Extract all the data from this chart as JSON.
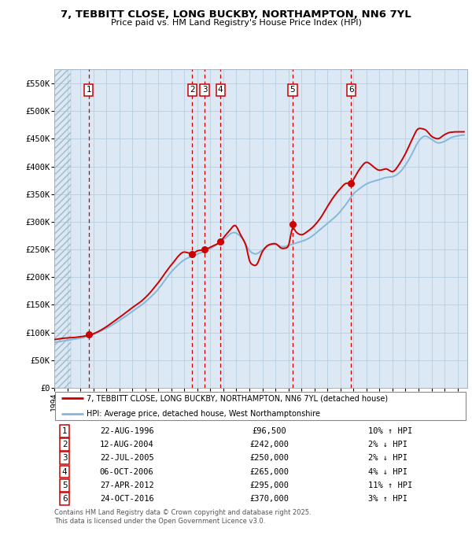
{
  "title_line1": "7, TEBBITT CLOSE, LONG BUCKBY, NORTHAMPTON, NN6 7YL",
  "title_line2": "Price paid vs. HM Land Registry's House Price Index (HPI)",
  "plot_bg_color": "#dce9f5",
  "grid_color": "#b8cfe0",
  "sale_line_color": "#cc0000",
  "hpi_line_color": "#85b8d8",
  "vline_color": "#cc0000",
  "sale_dot_color": "#cc0000",
  "ylim": [
    0,
    575000
  ],
  "yticks": [
    0,
    50000,
    100000,
    150000,
    200000,
    250000,
    300000,
    350000,
    400000,
    450000,
    500000,
    550000
  ],
  "ytick_labels": [
    "£0",
    "£50K",
    "£100K",
    "£150K",
    "£200K",
    "£250K",
    "£300K",
    "£350K",
    "£400K",
    "£450K",
    "£500K",
    "£550K"
  ],
  "xstart": 1994.0,
  "xend": 2025.75,
  "sales": [
    {
      "num": 1,
      "year": 1996.64,
      "price": 96500,
      "label": "1"
    },
    {
      "num": 2,
      "year": 2004.61,
      "price": 242000,
      "label": "2"
    },
    {
      "num": 3,
      "year": 2005.55,
      "price": 250000,
      "label": "3"
    },
    {
      "num": 4,
      "year": 2006.77,
      "price": 265000,
      "label": "4"
    },
    {
      "num": 5,
      "year": 2012.32,
      "price": 295000,
      "label": "5"
    },
    {
      "num": 6,
      "year": 2016.82,
      "price": 370000,
      "label": "6"
    }
  ],
  "legend_sale_label": "7, TEBBITT CLOSE, LONG BUCKBY, NORTHAMPTON, NN6 7YL (detached house)",
  "legend_hpi_label": "HPI: Average price, detached house, West Northamptonshire",
  "table": [
    {
      "num": "1",
      "date": "22-AUG-1996",
      "price": "£96,500",
      "hpi": "10% ↑ HPI"
    },
    {
      "num": "2",
      "date": "12-AUG-2004",
      "price": "£242,000",
      "hpi": "2% ↓ HPI"
    },
    {
      "num": "3",
      "date": "22-JUL-2005",
      "price": "£250,000",
      "hpi": "2% ↓ HPI"
    },
    {
      "num": "4",
      "date": "06-OCT-2006",
      "price": "£265,000",
      "hpi": "4% ↓ HPI"
    },
    {
      "num": "5",
      "date": "27-APR-2012",
      "price": "£295,000",
      "hpi": "11% ↑ HPI"
    },
    {
      "num": "6",
      "date": "24-OCT-2016",
      "price": "£370,000",
      "hpi": "3% ↑ HPI"
    }
  ],
  "footnote": "Contains HM Land Registry data © Crown copyright and database right 2025.\nThis data is licensed under the Open Government Licence v3.0."
}
